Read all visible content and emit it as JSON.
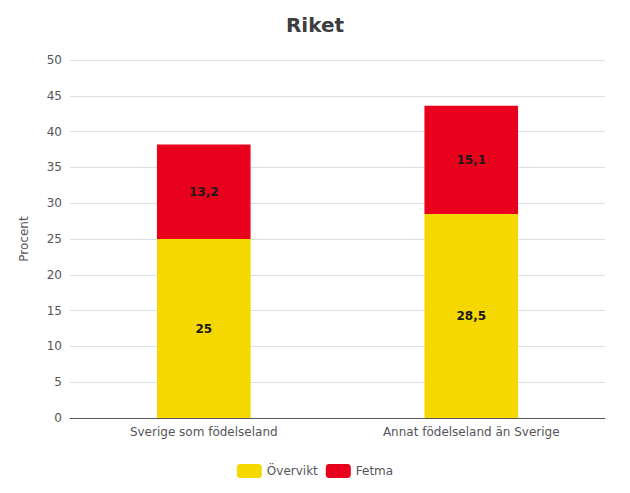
{
  "chart_data": {
    "type": "bar",
    "stacked": true,
    "title": "Riket",
    "categories": [
      "Sverige som födelseland",
      "Annat födelseland än Sverige"
    ],
    "series": [
      {
        "name": "Övervikt",
        "color": "#F5D800",
        "values": [
          25,
          28.5
        ],
        "value_labels": [
          "25",
          "28,5"
        ]
      },
      {
        "name": "Fetma",
        "color": "#E8001C",
        "values": [
          13.2,
          15.1
        ],
        "value_labels": [
          "13,2",
          "15,1"
        ]
      }
    ],
    "ylabel": "Procent",
    "ylim": [
      0,
      50
    ],
    "yticks": [
      0,
      5,
      10,
      15,
      20,
      25,
      30,
      35,
      40,
      45,
      50
    ],
    "grid": true,
    "legend": "bottom",
    "data_labels": true
  }
}
